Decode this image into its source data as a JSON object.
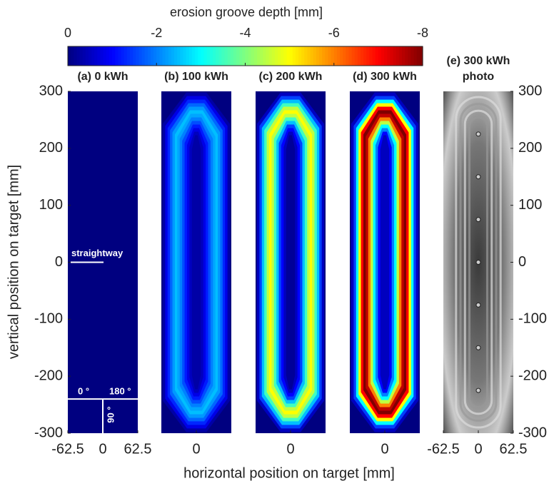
{
  "chart_data": {
    "type": "heatmap",
    "colorbar": {
      "label": "erosion groove depth [mm]",
      "clim": [
        0,
        -8
      ],
      "cticks": [
        0,
        -2,
        -4,
        -6,
        -8
      ]
    },
    "ylabel": "vertical position on target [mm]",
    "xlabel": "horizontal position on target [mm]",
    "xlim": [
      -62.5,
      62.5
    ],
    "ylim": [
      -300,
      300
    ],
    "yticks": [
      300,
      200,
      100,
      0,
      -100,
      -200,
      -300
    ],
    "panels": [
      {
        "title_lines": [
          "(a) 0 kWh"
        ],
        "xticks": [
          -62.5,
          0,
          62.5
        ],
        "levels": [],
        "markers": {
          "straightway": {
            "label": "straightway",
            "y": 0
          },
          "angles": {
            "y": -240,
            "labels": [
              "0 °",
              "180 °",
              "90 °"
            ]
          }
        }
      },
      {
        "title_lines": [
          "(b) 100 kWh"
        ],
        "xticks": [
          0
        ],
        "levels": [
          -0.3,
          -0.8,
          -1.3,
          -1.8,
          -2.2,
          -2.5,
          -2.3,
          -2,
          -1.6,
          -1.2,
          -0.8,
          -0.5,
          -0.3
        ]
      },
      {
        "title_lines": [
          "(c) 200 kWh"
        ],
        "xticks": [
          0
        ],
        "levels": [
          -0.5,
          -1.5,
          -2.5,
          -3.5,
          -4.5,
          -5,
          -4.5,
          -3.5,
          -2.5,
          -1.5,
          -1,
          -0.5,
          -0.2
        ]
      },
      {
        "title_lines": [
          "(d) 300 kWh"
        ],
        "xticks": [
          0
        ],
        "levels": [
          -0.5,
          -1.5,
          -3,
          -5,
          -7,
          -8,
          -7.5,
          -6,
          -4.5,
          -3,
          -2,
          -1,
          -0.5
        ]
      },
      {
        "title_lines": [
          "(e) 300 kWh",
          "photo"
        ],
        "xticks": [
          -62.5,
          0,
          62.5
        ],
        "photo": true
      }
    ]
  }
}
